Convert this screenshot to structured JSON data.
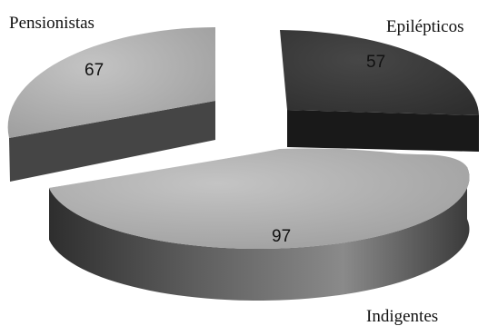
{
  "chart_data": {
    "type": "pie",
    "variant": "3d-exploded",
    "title": "",
    "legend": "none",
    "slices": [
      {
        "label": "Pensionistas",
        "value": 67,
        "top_color": "#b8b8b8",
        "side_color": "#4a4a4a"
      },
      {
        "label": "Epilépticos",
        "value": 57,
        "top_color": "#3a3a3a",
        "side_color": "#1a1a1a"
      },
      {
        "label": "Indigentes",
        "value": 97,
        "top_color": "#a6a6a6",
        "side_color": "#575757"
      }
    ]
  }
}
